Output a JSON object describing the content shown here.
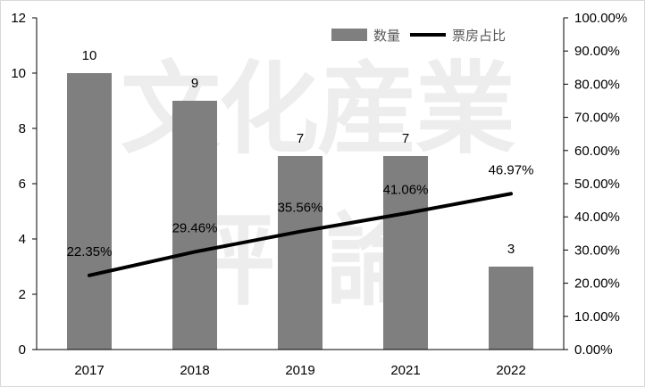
{
  "chart_data": {
    "type": "bar",
    "categories": [
      "2017",
      "2018",
      "2019",
      "2021",
      "2022"
    ],
    "series": [
      {
        "name": "数量",
        "type": "bar",
        "axis": "left",
        "color": "#7f7f7f",
        "values": [
          10,
          9,
          7,
          7,
          3
        ],
        "labels": [
          "10",
          "9",
          "7",
          "7",
          "3"
        ]
      },
      {
        "name": "票房占比",
        "type": "line",
        "axis": "right",
        "color": "#000000",
        "values": [
          22.35,
          29.46,
          35.56,
          41.06,
          46.97
        ],
        "labels": [
          "22.35%",
          "29.46%",
          "35.56%",
          "41.06%",
          "46.97%"
        ]
      }
    ],
    "y_left": {
      "min": 0,
      "max": 12,
      "ticks": [
        0,
        2,
        4,
        6,
        8,
        10,
        12
      ],
      "tick_labels": [
        "0",
        "2",
        "4",
        "6",
        "8",
        "10",
        "12"
      ]
    },
    "y_right": {
      "min": 0,
      "max": 100,
      "ticks": [
        0,
        10,
        20,
        30,
        40,
        50,
        60,
        70,
        80,
        90,
        100
      ],
      "tick_labels": [
        "0.00%",
        "10.00%",
        "20.00%",
        "30.00%",
        "40.00%",
        "50.00%",
        "60.00%",
        "70.00%",
        "80.00%",
        "90.00%",
        "100.00%"
      ]
    },
    "grid": false,
    "legend_position": "top-right",
    "title": "",
    "xlabel": "",
    "ylabel": ""
  },
  "watermark": {
    "text": "文化産業評論",
    "color": "#000000"
  }
}
